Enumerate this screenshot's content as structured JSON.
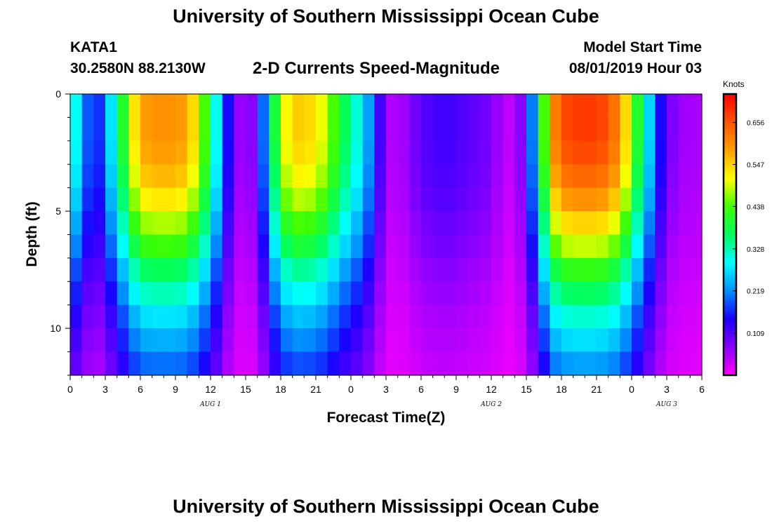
{
  "header": {
    "title": "University of Southern Mississippi Ocean Cube",
    "station": "KATA1",
    "coordinates": "30.2580N 88.2130W",
    "subtitle": "2-D Currents Speed-Magnitude",
    "model_start_label": "Model Start Time",
    "model_start_value": "08/01/2019 Hour 03"
  },
  "footer": {
    "title": "University of Southern Mississippi Ocean Cube"
  },
  "chart_data": {
    "type": "heatmap",
    "title": "2-D Currents Speed-Magnitude",
    "xlabel": "Forecast Time(Z)",
    "ylabel": "Depth (ft)",
    "x_range_hours": [
      0,
      54
    ],
    "x_tick_labels": [
      "0",
      "3",
      "6",
      "9",
      "12",
      "15",
      "18",
      "21",
      "0",
      "3",
      "6",
      "9",
      "12",
      "15",
      "18",
      "21",
      "0",
      "3",
      "6"
    ],
    "date_labels": [
      {
        "label": "AUG 1",
        "hour": 12
      },
      {
        "label": "AUG 2",
        "hour": 36
      },
      {
        "label": "AUG 3",
        "hour": 51
      }
    ],
    "y_range_ft": [
      0,
      12
    ],
    "y_tick_labels": [
      "0",
      "5",
      "10"
    ],
    "y_tick_values": [
      0,
      5,
      10
    ],
    "depth_levels_ft": [
      0.5,
      1.5,
      2.5,
      3.5,
      4.5,
      5.5,
      6.5,
      7.5,
      8.5,
      9.5,
      10.5,
      11.5
    ],
    "colorbar": {
      "units": "Knots",
      "min": 0.0,
      "max": 0.73,
      "tick_labels": [
        "0.109",
        "0.219",
        "0.328",
        "0.438",
        "0.547",
        "0.656"
      ],
      "tick_values": [
        0.109,
        0.219,
        0.328,
        0.438,
        0.547,
        0.656
      ],
      "colors": [
        "#ff00ff",
        "#8a00ff",
        "#1a00ff",
        "#0090ff",
        "#00ffff",
        "#00ff60",
        "#40ff00",
        "#ffff00",
        "#ffa000",
        "#ff5500",
        "#ff0000"
      ]
    },
    "surface_speed_by_hour_knots": [
      0.33,
      0.26,
      0.12,
      0.22,
      0.33,
      0.48,
      0.58,
      0.6,
      0.6,
      0.6,
      0.58,
      0.5,
      0.38,
      0.22,
      0.08,
      0.05,
      0.1,
      0.3,
      0.48,
      0.55,
      0.55,
      0.53,
      0.48,
      0.4,
      0.34,
      0.28,
      0.18,
      0.06,
      0.04,
      0.08,
      0.1,
      0.12,
      0.12,
      0.12,
      0.1,
      0.1,
      0.08,
      0.05,
      0.03,
      0.12,
      0.3,
      0.58,
      0.66,
      0.68,
      0.68,
      0.68,
      0.66,
      0.6,
      0.48,
      0.33,
      0.2,
      0.1,
      0.06,
      0.06,
      0.05
    ],
    "depth_decay_profile": [
      1.0,
      1.0,
      0.98,
      0.94,
      0.88,
      0.8,
      0.72,
      0.62,
      0.54,
      0.46,
      0.4,
      0.34
    ]
  }
}
